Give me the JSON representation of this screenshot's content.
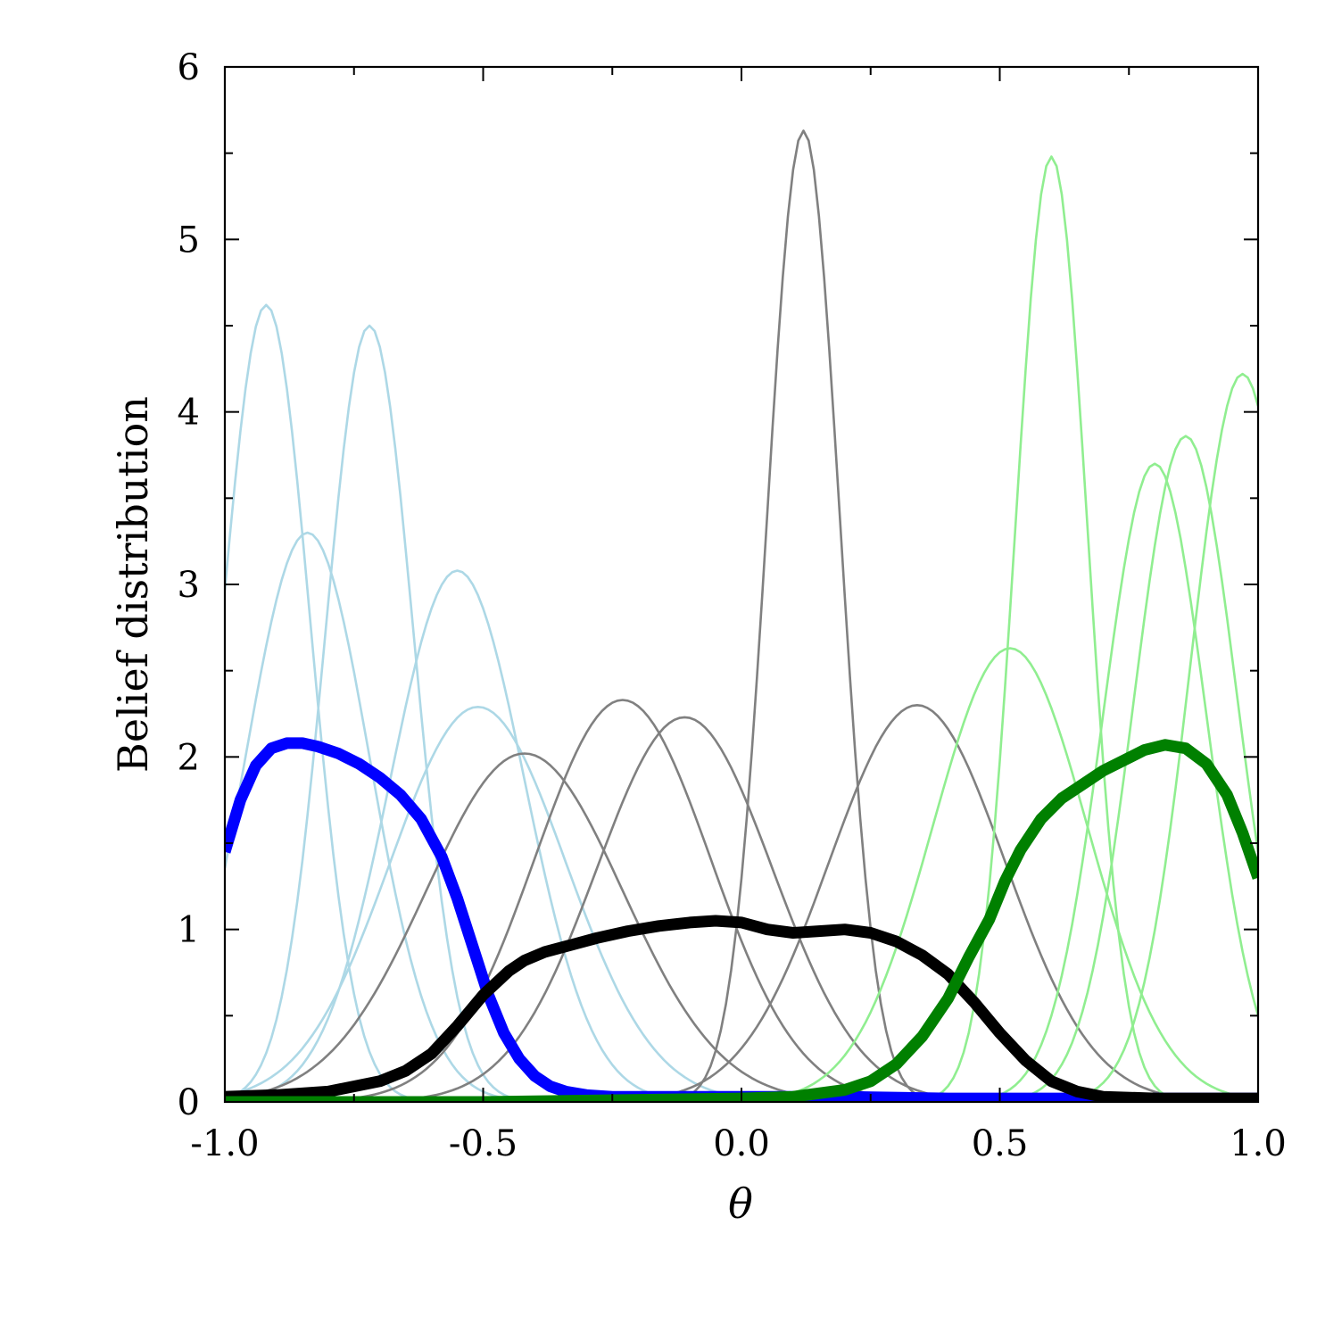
{
  "chart_data": {
    "type": "line",
    "title": "",
    "xlabel": "θ",
    "ylabel": "Belief distribution",
    "xlim": [
      -1.0,
      1.0
    ],
    "ylim": [
      0,
      6
    ],
    "xticks": [
      -1.0,
      -0.5,
      0.0,
      0.5,
      1.0
    ],
    "xtick_labels": [
      "-1.0",
      "-0.5",
      "0.0",
      "0.5",
      "1.0"
    ],
    "yticks": [
      0,
      1,
      2,
      3,
      4,
      5,
      6
    ],
    "ytick_labels": [
      "0",
      "1",
      "2",
      "3",
      "4",
      "5",
      "6"
    ],
    "grid": false,
    "legend": "none",
    "colors": {
      "light_blue": "#add8e6",
      "gray": "#808080",
      "light_green": "#90ee90",
      "blue": "#0000ff",
      "black": "#000000",
      "green": "#008000"
    },
    "series": [
      {
        "color": "light_blue",
        "width": "thin",
        "peak_x": -0.92,
        "peak_y": 4.62,
        "sigma": 0.085
      },
      {
        "color": "light_blue",
        "width": "thin",
        "peak_x": -0.72,
        "peak_y": 4.5,
        "sigma": 0.085
      },
      {
        "color": "light_blue",
        "width": "thin",
        "peak_x": -0.84,
        "peak_y": 3.3,
        "sigma": 0.12
      },
      {
        "color": "light_blue",
        "width": "thin",
        "peak_x": -0.55,
        "peak_y": 3.08,
        "sigma": 0.13
      },
      {
        "color": "light_blue",
        "width": "thin",
        "peak_x": -0.51,
        "peak_y": 2.29,
        "sigma": 0.17
      },
      {
        "color": "gray",
        "width": "thin",
        "peak_x": -0.42,
        "peak_y": 2.02,
        "sigma": 0.19
      },
      {
        "color": "gray",
        "width": "thin",
        "peak_x": -0.23,
        "peak_y": 2.33,
        "sigma": 0.17
      },
      {
        "color": "gray",
        "width": "thin",
        "peak_x": -0.11,
        "peak_y": 2.23,
        "sigma": 0.17
      },
      {
        "color": "gray",
        "width": "thin",
        "peak_x": 0.12,
        "peak_y": 5.63,
        "sigma": 0.07
      },
      {
        "color": "gray",
        "width": "thin",
        "peak_x": 0.34,
        "peak_y": 2.3,
        "sigma": 0.17
      },
      {
        "color": "light_green",
        "width": "thin",
        "peak_x": 0.52,
        "peak_y": 2.63,
        "sigma": 0.15
      },
      {
        "color": "light_green",
        "width": "thin",
        "peak_x": 0.6,
        "peak_y": 5.48,
        "sigma": 0.07
      },
      {
        "color": "light_green",
        "width": "thin",
        "peak_x": 0.8,
        "peak_y": 3.7,
        "sigma": 0.1
      },
      {
        "color": "light_green",
        "width": "thin",
        "peak_x": 0.86,
        "peak_y": 3.86,
        "sigma": 0.1
      },
      {
        "color": "light_green",
        "width": "thin",
        "peak_x": 0.97,
        "peak_y": 4.22,
        "sigma": 0.1
      },
      {
        "color": "blue",
        "width": "thick",
        "x": [
          -1.0,
          -0.97,
          -0.94,
          -0.91,
          -0.88,
          -0.85,
          -0.82,
          -0.78,
          -0.74,
          -0.7,
          -0.66,
          -0.62,
          -0.58,
          -0.55,
          -0.52,
          -0.49,
          -0.46,
          -0.43,
          -0.4,
          -0.37,
          -0.34,
          -0.3,
          -0.25,
          -0.2,
          -0.1,
          0.0,
          0.2,
          0.4,
          0.6,
          0.8,
          1.0
        ],
        "y": [
          1.45,
          1.75,
          1.95,
          2.05,
          2.08,
          2.08,
          2.06,
          2.02,
          1.96,
          1.88,
          1.78,
          1.64,
          1.42,
          1.18,
          0.9,
          0.62,
          0.4,
          0.25,
          0.15,
          0.09,
          0.06,
          0.04,
          0.03,
          0.03,
          0.03,
          0.03,
          0.03,
          0.02,
          0.02,
          0.02,
          0.02
        ]
      },
      {
        "color": "black",
        "width": "thick",
        "x": [
          -1.0,
          -0.9,
          -0.8,
          -0.7,
          -0.65,
          -0.6,
          -0.55,
          -0.5,
          -0.45,
          -0.42,
          -0.38,
          -0.33,
          -0.28,
          -0.22,
          -0.16,
          -0.1,
          -0.05,
          0.0,
          0.05,
          0.1,
          0.15,
          0.2,
          0.25,
          0.3,
          0.35,
          0.4,
          0.45,
          0.5,
          0.55,
          0.6,
          0.65,
          0.7,
          0.8,
          0.9,
          1.0
        ],
        "y": [
          0.03,
          0.04,
          0.06,
          0.12,
          0.18,
          0.28,
          0.44,
          0.62,
          0.76,
          0.82,
          0.87,
          0.91,
          0.95,
          0.99,
          1.02,
          1.04,
          1.05,
          1.04,
          1.0,
          0.98,
          0.99,
          1.0,
          0.98,
          0.93,
          0.85,
          0.74,
          0.58,
          0.4,
          0.24,
          0.12,
          0.06,
          0.03,
          0.02,
          0.02,
          0.02
        ]
      },
      {
        "color": "green",
        "width": "thick",
        "x": [
          -1.0,
          -0.5,
          0.0,
          0.1,
          0.2,
          0.25,
          0.3,
          0.35,
          0.4,
          0.44,
          0.48,
          0.51,
          0.54,
          0.58,
          0.62,
          0.66,
          0.7,
          0.74,
          0.78,
          0.82,
          0.86,
          0.9,
          0.94,
          0.97,
          1.0
        ],
        "y": [
          0.0,
          0.0,
          0.02,
          0.03,
          0.07,
          0.12,
          0.22,
          0.38,
          0.6,
          0.84,
          1.06,
          1.28,
          1.46,
          1.64,
          1.76,
          1.84,
          1.92,
          1.98,
          2.04,
          2.07,
          2.05,
          1.96,
          1.78,
          1.56,
          1.3
        ]
      }
    ]
  }
}
